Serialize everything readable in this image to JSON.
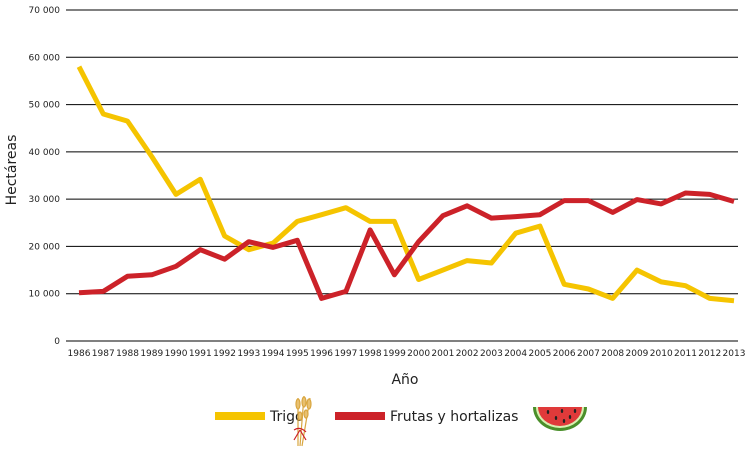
{
  "chart_data": {
    "type": "line",
    "title": "",
    "xlabel": "Año",
    "ylabel": "Hectáreas",
    "ylim": [
      0,
      70000
    ],
    "yticks": [
      {
        "value": 0,
        "label": "0"
      },
      {
        "value": 10000,
        "label": "10 000"
      },
      {
        "value": 20000,
        "label": "20 000"
      },
      {
        "value": 30000,
        "label": "30 000"
      },
      {
        "value": 40000,
        "label": "40 000"
      },
      {
        "value": 50000,
        "label": "50 000"
      },
      {
        "value": 60000,
        "label": "60 000"
      },
      {
        "value": 70000,
        "label": "70 000"
      }
    ],
    "grid": true,
    "legend_position": "bottom",
    "categories": [
      "1986",
      "1987",
      "1988",
      "1989",
      "1990",
      "1991",
      "1992",
      "1993",
      "1994",
      "1995",
      "1996",
      "1997",
      "1998",
      "1999",
      "2000",
      "2001",
      "2002",
      "2003",
      "2004",
      "2005",
      "2006",
      "2007",
      "2008",
      "2009",
      "2010",
      "2011",
      "2012",
      "2013"
    ],
    "series": [
      {
        "name": "Trigo",
        "color": "#f5c400",
        "icon": "wheat-icon",
        "values": [
          58000,
          48000,
          46500,
          39000,
          31000,
          34200,
          22200,
          19300,
          20700,
          25300,
          26700,
          28200,
          25300,
          25300,
          13000,
          15000,
          17000,
          16500,
          22800,
          24300,
          12000,
          11000,
          9000,
          15000,
          12500,
          11700,
          9000,
          8500
        ]
      },
      {
        "name": "Frutas y hortalizas",
        "color": "#cc2229",
        "icon": "watermelon-icon",
        "values": [
          10200,
          10500,
          13700,
          14000,
          15800,
          19300,
          17300,
          21000,
          19800,
          21300,
          9000,
          10500,
          23500,
          14000,
          21000,
          26500,
          28600,
          26000,
          26300,
          26700,
          29700,
          29700,
          27200,
          29900,
          29000,
          31300,
          31000,
          29500
        ]
      }
    ]
  }
}
